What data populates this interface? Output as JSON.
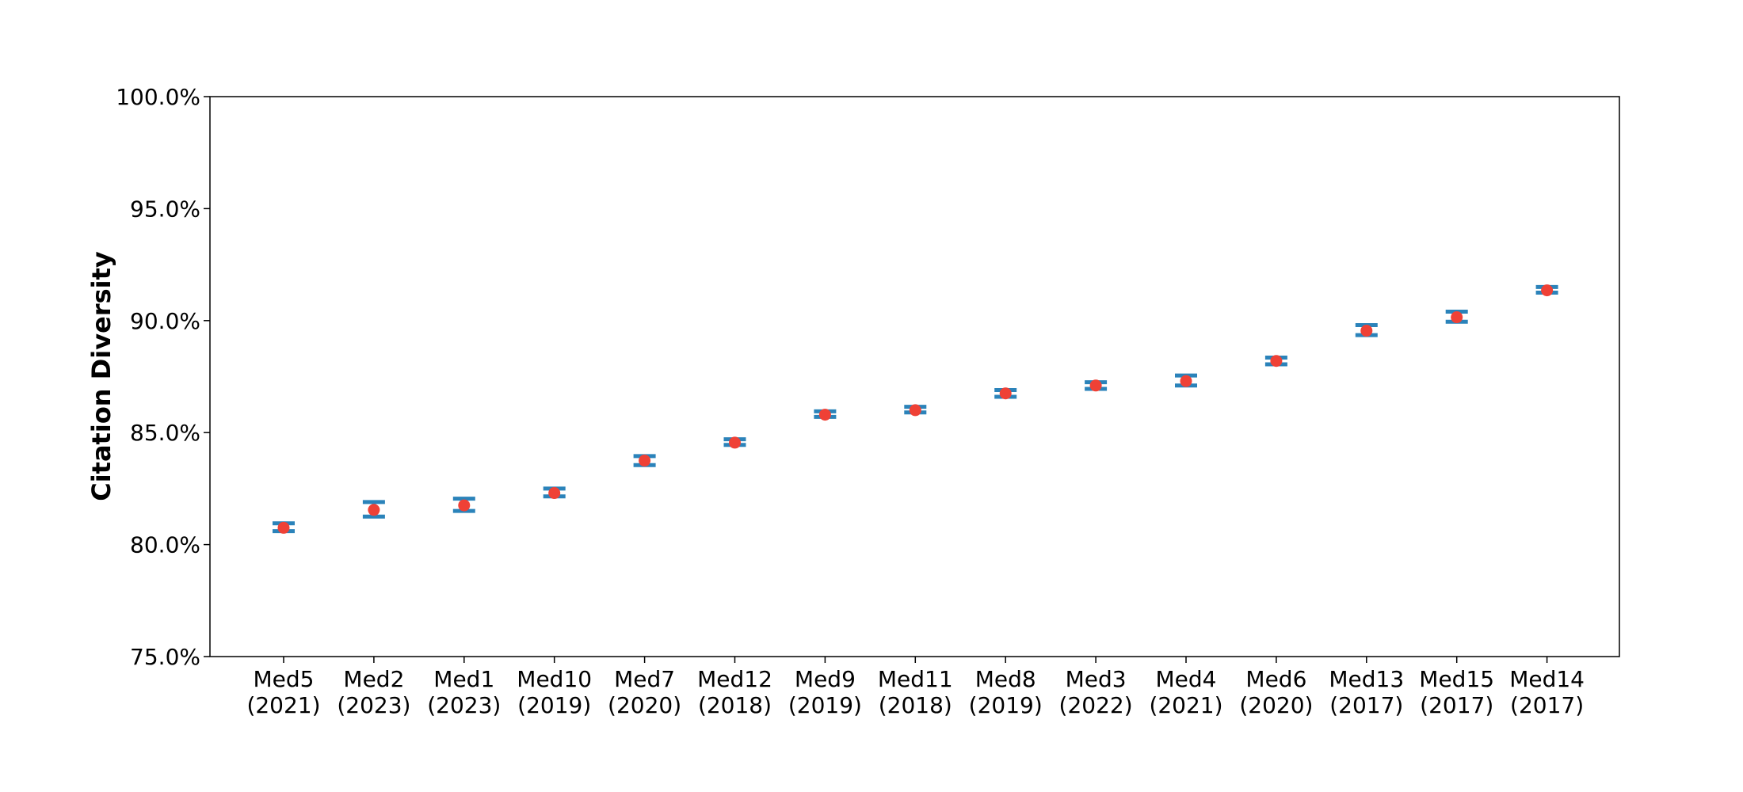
{
  "chart_data": {
    "type": "scatter",
    "title": "",
    "xlabel": "",
    "ylabel": "Citation Diversity",
    "y_tick_labels": [
      "75.0%",
      "80.0%",
      "85.0%",
      "90.0%",
      "95.0%",
      "100.0%"
    ],
    "ylim": [
      75.0,
      100.0
    ],
    "grid": false,
    "legend": "none",
    "categories": [
      [
        "Med5",
        "(2021)"
      ],
      [
        "Med2",
        "(2023)"
      ],
      [
        "Med1",
        "(2023)"
      ],
      [
        "Med10",
        "(2019)"
      ],
      [
        "Med7",
        "(2020)"
      ],
      [
        "Med12",
        "(2018)"
      ],
      [
        "Med9",
        "(2019)"
      ],
      [
        "Med11",
        "(2018)"
      ],
      [
        "Med8",
        "(2019)"
      ],
      [
        "Med3",
        "(2022)"
      ],
      [
        "Med4",
        "(2021)"
      ],
      [
        "Med6",
        "(2020)"
      ],
      [
        "Med13",
        "(2017)"
      ],
      [
        "Med15",
        "(2017)"
      ],
      [
        "Med14",
        "(2017)"
      ]
    ],
    "values": [
      80.75,
      81.55,
      81.75,
      82.3,
      83.75,
      84.55,
      85.8,
      86.0,
      86.75,
      87.1,
      87.3,
      88.2,
      89.55,
      90.15,
      91.35
    ],
    "error_low": [
      80.6,
      81.25,
      81.5,
      82.15,
      83.55,
      84.45,
      85.7,
      85.9,
      86.6,
      86.95,
      87.1,
      88.05,
      89.35,
      89.95,
      91.25
    ],
    "error_high": [
      80.95,
      81.9,
      82.05,
      82.5,
      83.95,
      84.7,
      85.95,
      86.15,
      86.9,
      87.25,
      87.55,
      88.35,
      89.8,
      90.4,
      91.5
    ],
    "colors": {
      "marker": "#ef4136",
      "error_bar": "#2b83ba",
      "axis": "#000000"
    }
  }
}
